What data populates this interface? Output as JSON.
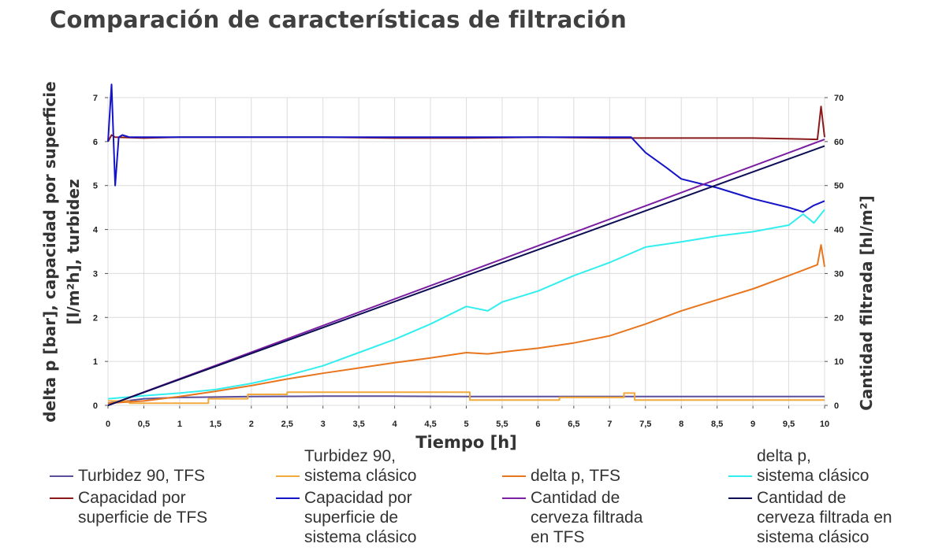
{
  "title": "Comparación de características de filtración",
  "chart_data": {
    "type": "line",
    "xlabel": "Tiempo [h]",
    "ylabel_left": "delta p [bar], capacidad por superficie\n[l/m²h], turbidez",
    "ylabel_right": "Cantidad filtrada [hl/m²]",
    "xlim": [
      0,
      10
    ],
    "ylim_left": [
      0,
      7
    ],
    "ylim_right": [
      0,
      70
    ],
    "grid": true,
    "x_ticks": [
      "0",
      "0,5",
      "1",
      "1,5",
      "2",
      "2,5",
      "3",
      "3,5",
      "4",
      "4,5",
      "5",
      "5,5",
      "6",
      "6,5",
      "7",
      "7,5",
      "8",
      "8,5",
      "9",
      "9,5",
      "10"
    ],
    "y_ticks_left": [
      "0",
      "1",
      "2",
      "3",
      "4",
      "5",
      "6",
      "7"
    ],
    "y_ticks_right": [
      "0",
      "10",
      "20",
      "30",
      "40",
      "50",
      "60",
      "70"
    ],
    "series": [
      {
        "name": "Turbidez 90, TFS",
        "color": "#5a4f9a",
        "axis": "left",
        "x": [
          0,
          0.5,
          1,
          2,
          3,
          4,
          5,
          6,
          7,
          8,
          9,
          10
        ],
        "y": [
          0.05,
          0.15,
          0.18,
          0.2,
          0.21,
          0.21,
          0.2,
          0.2,
          0.2,
          0.2,
          0.2,
          0.2
        ]
      },
      {
        "name": "Turbidez 90,\nsistema clásico",
        "color": "#f2a93b",
        "axis": "left",
        "x": [
          0,
          0.3,
          0.3,
          1.4,
          1.4,
          1.95,
          1.95,
          2.5,
          2.5,
          5.05,
          5.05,
          6.3,
          6.3,
          7.2,
          7.2,
          7.35,
          7.35,
          10
        ],
        "y": [
          0.1,
          0.1,
          0.05,
          0.05,
          0.15,
          0.15,
          0.25,
          0.25,
          0.3,
          0.3,
          0.12,
          0.12,
          0.18,
          0.18,
          0.28,
          0.28,
          0.12,
          0.12
        ]
      },
      {
        "name": "delta p, TFS",
        "color": "#e8761e",
        "axis": "left",
        "x": [
          0,
          0.5,
          1,
          1.5,
          2,
          2.5,
          3,
          3.5,
          4,
          4.5,
          5,
          5.3,
          5.7,
          6,
          6.5,
          7,
          7.5,
          8,
          8.5,
          9,
          9.5,
          9.9,
          9.95,
          10
        ],
        "y": [
          0.05,
          0.1,
          0.2,
          0.32,
          0.45,
          0.6,
          0.73,
          0.85,
          0.97,
          1.08,
          1.2,
          1.17,
          1.25,
          1.3,
          1.42,
          1.58,
          1.85,
          2.15,
          2.4,
          2.65,
          2.95,
          3.2,
          3.65,
          3.15
        ]
      },
      {
        "name": "delta p,\nsistema clásico",
        "color": "#33eeee",
        "axis": "left",
        "x": [
          0,
          0.5,
          1,
          1.5,
          2,
          2.5,
          3,
          3.5,
          4,
          4.5,
          5,
          5.3,
          5.5,
          6,
          6.5,
          7,
          7.5,
          8,
          8.5,
          9,
          9.5,
          9.7,
          9.85,
          10
        ],
        "y": [
          0.15,
          0.22,
          0.28,
          0.36,
          0.5,
          0.68,
          0.9,
          1.2,
          1.5,
          1.85,
          2.25,
          2.15,
          2.35,
          2.6,
          2.95,
          3.25,
          3.6,
          3.72,
          3.85,
          3.95,
          4.1,
          4.35,
          4.15,
          4.45
        ]
      },
      {
        "name": "Capacidad por\nsuperficie de TFS",
        "color": "#8b1a1a",
        "axis": "left",
        "x": [
          0,
          0.05,
          0.1,
          0.5,
          1,
          2,
          3,
          4,
          5,
          6,
          7,
          8,
          9,
          9.9,
          9.95,
          10
        ],
        "y": [
          6.0,
          6.15,
          6.1,
          6.08,
          6.1,
          6.1,
          6.1,
          6.08,
          6.08,
          6.1,
          6.08,
          6.08,
          6.08,
          6.05,
          6.8,
          6.1
        ]
      },
      {
        "name": "Capacidad por\nsuperficie de\nsistema clásico",
        "color": "#1414c8",
        "axis": "left",
        "x": [
          0,
          0.05,
          0.1,
          0.15,
          0.2,
          0.3,
          0.5,
          1,
          2,
          3,
          4,
          5,
          6,
          7,
          7.3,
          7.5,
          7.8,
          8,
          8.5,
          9,
          9.5,
          9.7,
          9.85,
          10
        ],
        "y": [
          6.0,
          7.3,
          5.0,
          6.1,
          6.15,
          6.1,
          6.1,
          6.1,
          6.1,
          6.1,
          6.1,
          6.1,
          6.1,
          6.1,
          6.1,
          5.75,
          5.4,
          5.15,
          4.95,
          4.7,
          4.5,
          4.4,
          4.55,
          4.65
        ]
      },
      {
        "name": "Cantidad de\ncerveza filtrada\nen TFS",
        "color": "#7b1fa2",
        "axis": "right",
        "x": [
          0,
          10
        ],
        "y": [
          0,
          60.5
        ]
      },
      {
        "name": "Cantidad de\ncerveza filtrada en\nsistema clásico",
        "color": "#0d0d55",
        "axis": "right",
        "x": [
          0,
          10
        ],
        "y": [
          0,
          59
        ]
      }
    ]
  }
}
